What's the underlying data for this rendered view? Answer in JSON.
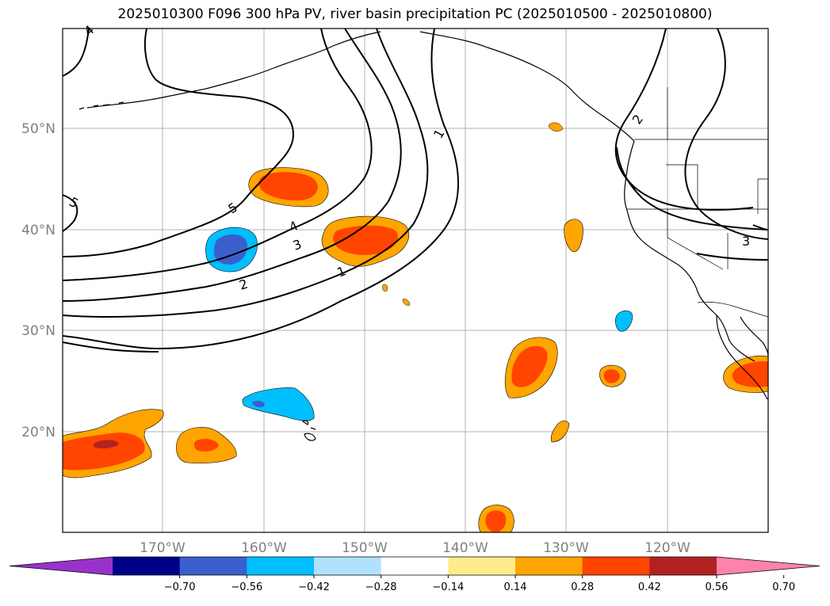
{
  "title": "2025010300 F096 300 hPa PV, river basin precipitation PC (2025010500 - 2025010800)",
  "lat_labels": [
    "50°N",
    "40°N",
    "30°N",
    "20°N"
  ],
  "lon_labels": [
    "170°W",
    "160°W",
    "150°W",
    "140°W",
    "130°W",
    "120°W"
  ],
  "pv_contour_labels": [
    "4",
    "5",
    "5",
    "4",
    "3",
    "2",
    "1",
    "1",
    "2",
    "3"
  ],
  "colorbar": {
    "colors": [
      "#9932cc",
      "#00008b",
      "#3a5fcd",
      "#00bfff",
      "#b0e2ff",
      "#ffffff",
      "#ffec8b",
      "#ffa500",
      "#ff4500",
      "#b22222",
      "#ff82ab"
    ],
    "tick_labels": [
      "−0.70",
      "−0.56",
      "−0.42",
      "−0.28",
      "−0.14",
      "0.14",
      "0.28",
      "0.42",
      "0.56",
      "0.70"
    ],
    "extend": "both"
  },
  "colors": {
    "grid": "#b0b0b0",
    "contour": "#000000",
    "coast": "#000000"
  }
}
